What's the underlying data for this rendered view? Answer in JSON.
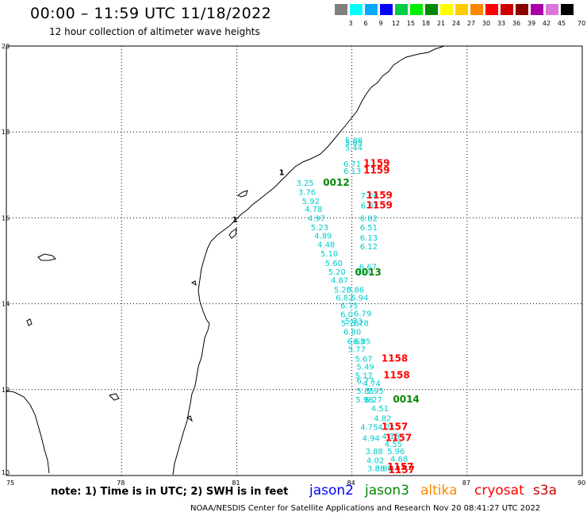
{
  "header": {
    "title": "00:00 – 11:59 UTC 11/18/2022",
    "subtitle": "12 hour collection of altimeter wave heights"
  },
  "color_scale": {
    "unit": "70 (ft)",
    "bins": [
      {
        "label": "3",
        "color": "#808080"
      },
      {
        "label": "6",
        "color": "#00ffff"
      },
      {
        "label": "9",
        "color": "#00aaff"
      },
      {
        "label": "12",
        "color": "#0000ff"
      },
      {
        "label": "15",
        "color": "#00cc44"
      },
      {
        "label": "18",
        "color": "#00ee00"
      },
      {
        "label": "21",
        "color": "#008800"
      },
      {
        "label": "24",
        "color": "#ffff00"
      },
      {
        "label": "27",
        "color": "#ffcc00"
      },
      {
        "label": "30",
        "color": "#ff8800"
      },
      {
        "label": "33",
        "color": "#ff0000"
      },
      {
        "label": "36",
        "color": "#cc0000"
      },
      {
        "label": "39",
        "color": "#880000"
      },
      {
        "label": "42",
        "color": "#aa00aa"
      },
      {
        "label": "45",
        "color": "#dd77dd"
      },
      {
        "label": "",
        "color": "#000000"
      }
    ]
  },
  "axes": {
    "lon_ticks": [
      "75",
      "78",
      "81",
      "84",
      "87",
      "90"
    ],
    "lat_ticks": [
      "20",
      "18",
      "16",
      "14",
      "12",
      "10"
    ]
  },
  "observations": [
    {
      "v": "5.88",
      "lon": 83.82,
      "lat": 17.74
    },
    {
      "v": "5.85",
      "lon": 83.82,
      "lat": 17.69
    },
    {
      "v": "5.44",
      "lon": 83.82,
      "lat": 17.57
    },
    {
      "v": "6.71",
      "lon": 83.78,
      "lat": 17.19
    },
    {
      "v": "6.13",
      "lon": 83.78,
      "lat": 17.02
    },
    {
      "v": "3.25",
      "lon": 82.55,
      "lat": 16.75
    },
    {
      "v": "3.76",
      "lon": 82.6,
      "lat": 16.53
    },
    {
      "v": "7.28",
      "lon": 84.23,
      "lat": 16.45
    },
    {
      "v": "5.92",
      "lon": 82.7,
      "lat": 16.32
    },
    {
      "v": "6.83",
      "lon": 84.23,
      "lat": 16.22
    },
    {
      "v": "4.78",
      "lon": 82.77,
      "lat": 16.14
    },
    {
      "v": "4.97",
      "lon": 82.85,
      "lat": 15.92
    },
    {
      "v": "6.82",
      "lon": 84.21,
      "lat": 15.92
    },
    {
      "v": "5.23",
      "lon": 82.93,
      "lat": 15.71
    },
    {
      "v": "6.51",
      "lon": 84.21,
      "lat": 15.71
    },
    {
      "v": "4.89",
      "lon": 83.02,
      "lat": 15.52
    },
    {
      "v": "6.13",
      "lon": 84.21,
      "lat": 15.47
    },
    {
      "v": "4.48",
      "lon": 83.1,
      "lat": 15.31
    },
    {
      "v": "6.12",
      "lon": 84.21,
      "lat": 15.27
    },
    {
      "v": "5.10",
      "lon": 83.18,
      "lat": 15.1
    },
    {
      "v": "5.60",
      "lon": 83.3,
      "lat": 14.88
    },
    {
      "v": "6.67",
      "lon": 84.19,
      "lat": 14.8
    },
    {
      "v": "5.20",
      "lon": 83.38,
      "lat": 14.68
    },
    {
      "v": "6.90",
      "lon": 84.09,
      "lat": 14.68
    },
    {
      "v": "4.87",
      "lon": 83.45,
      "lat": 14.48
    },
    {
      "v": "5.20",
      "lon": 83.53,
      "lat": 14.26
    },
    {
      "v": "5.86",
      "lon": 83.86,
      "lat": 14.26
    },
    {
      "v": "6.82",
      "lon": 83.58,
      "lat": 14.08
    },
    {
      "v": "6.94",
      "lon": 83.97,
      "lat": 14.08
    },
    {
      "v": "6.75",
      "lon": 83.7,
      "lat": 13.89
    },
    {
      "v": "6.79",
      "lon": 84.05,
      "lat": 13.71
    },
    {
      "v": "6.0",
      "lon": 83.7,
      "lat": 13.69
    },
    {
      "v": "5.73",
      "lon": 83.82,
      "lat": 13.53
    },
    {
      "v": "5.78",
      "lon": 83.72,
      "lat": 13.48
    },
    {
      "v": "5.28",
      "lon": 83.98,
      "lat": 13.48
    },
    {
      "v": "6.80",
      "lon": 83.78,
      "lat": 13.28
    },
    {
      "v": "6.63",
      "lon": 83.88,
      "lat": 13.06
    },
    {
      "v": "6.05",
      "lon": 84.03,
      "lat": 13.06
    },
    {
      "v": "5.77",
      "lon": 83.9,
      "lat": 12.87
    },
    {
      "v": "5.67",
      "lon": 84.08,
      "lat": 12.65
    },
    {
      "v": "5.49",
      "lon": 84.12,
      "lat": 12.47
    },
    {
      "v": "5.17",
      "lon": 84.08,
      "lat": 12.26
    },
    {
      "v": "6.77",
      "lon": 84.12,
      "lat": 12.14
    },
    {
      "v": "4.74",
      "lon": 84.29,
      "lat": 12.08
    },
    {
      "v": "5.85",
      "lon": 84.12,
      "lat": 11.9
    },
    {
      "v": "5.95",
      "lon": 84.37,
      "lat": 11.9
    },
    {
      "v": "5.98",
      "lon": 84.1,
      "lat": 11.7
    },
    {
      "v": "6.27",
      "lon": 84.33,
      "lat": 11.7
    },
    {
      "v": "4.51",
      "lon": 84.5,
      "lat": 11.5
    },
    {
      "v": "4.82",
      "lon": 84.57,
      "lat": 11.27
    },
    {
      "v": "4.75",
      "lon": 84.22,
      "lat": 11.06
    },
    {
      "v": "4.21",
      "lon": 84.67,
      "lat": 11.06
    },
    {
      "v": "4.94",
      "lon": 84.27,
      "lat": 10.8
    },
    {
      "v": "4.18",
      "lon": 84.78,
      "lat": 10.85
    },
    {
      "v": "4.55",
      "lon": 84.85,
      "lat": 10.67
    },
    {
      "v": "3.88",
      "lon": 84.35,
      "lat": 10.5
    },
    {
      "v": "5.96",
      "lon": 84.92,
      "lat": 10.5
    },
    {
      "v": "4.02",
      "lon": 84.38,
      "lat": 10.29
    },
    {
      "v": "4.68",
      "lon": 85.0,
      "lat": 10.32
    },
    {
      "v": "3.86",
      "lon": 84.4,
      "lat": 10.1
    },
    {
      "v": "3.89",
      "lon": 84.6,
      "lat": 10.1
    }
  ],
  "passes": [
    {
      "label": "1159",
      "color": "#ff0000",
      "lon": 84.3,
      "lat": 17.2
    },
    {
      "label": "1159",
      "color": "#ff0000",
      "lon": 84.3,
      "lat": 17.03
    },
    {
      "label": "0012",
      "color": "#008800",
      "lon": 83.25,
      "lat": 16.75
    },
    {
      "label": "1159",
      "color": "#ff0000",
      "lon": 84.37,
      "lat": 16.45
    },
    {
      "label": "1159",
      "color": "#ff0000",
      "lon": 84.37,
      "lat": 16.22
    },
    {
      "label": "0013",
      "color": "#008800",
      "lon": 84.08,
      "lat": 14.66
    },
    {
      "label": "1158",
      "color": "#ff0000",
      "lon": 84.77,
      "lat": 12.65
    },
    {
      "label": "1158",
      "color": "#ff0000",
      "lon": 84.82,
      "lat": 12.26
    },
    {
      "label": "0014",
      "color": "#008800",
      "lon": 85.07,
      "lat": 11.7
    },
    {
      "label": "1157",
      "color": "#ff0000",
      "lon": 84.77,
      "lat": 11.06
    },
    {
      "label": "1157",
      "color": "#ff0000",
      "lon": 84.87,
      "lat": 10.8
    },
    {
      "label": "1157",
      "color": "#ff0000",
      "lon": 84.92,
      "lat": 10.13
    },
    {
      "label": "1157",
      "color": "#ff0000",
      "lon": 84.95,
      "lat": 10.06
    }
  ],
  "coast_labels": [
    {
      "text": "1",
      "lon": 82.1,
      "lat": 17.0
    },
    {
      "text": "1",
      "lon": 80.88,
      "lat": 15.9
    }
  ],
  "footer": {
    "note": "note:  1) Time is in UTC;  2) SWH is in feet",
    "satellites": [
      {
        "name": "jason2",
        "color": "#0000ff"
      },
      {
        "name": "jason3",
        "color": "#008800"
      },
      {
        "name": "altika",
        "color": "#ff8800"
      },
      {
        "name": "cryosat",
        "color": "#ff0000"
      },
      {
        "name": "s3a",
        "color": "#cc0000"
      }
    ],
    "credit": "NOAA/NESDIS Center for Satellite Applications and Research    Nov 20 08:41:27 UTC 2022"
  },
  "obs_color": "#00cccc"
}
